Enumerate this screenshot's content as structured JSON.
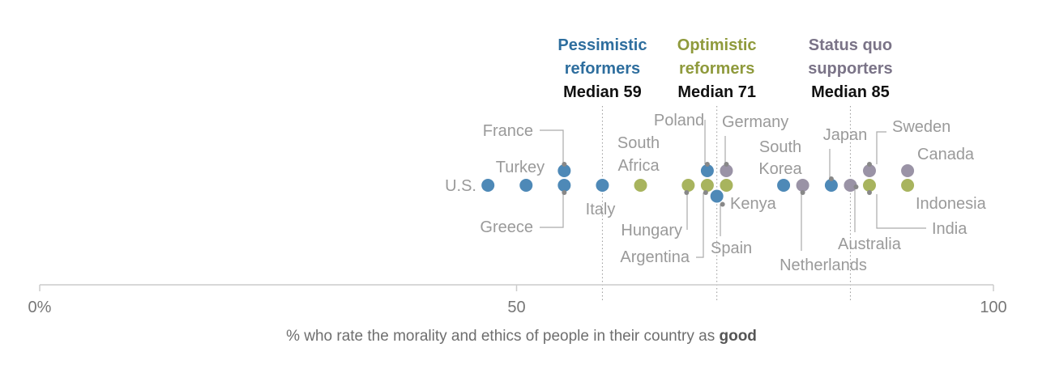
{
  "chart_data": {
    "type": "scatter",
    "xlabel_parts": [
      "% who rate the morality and ethics of people in their country as ",
      "good"
    ],
    "xlim": [
      0,
      100
    ],
    "ticks": [
      {
        "value": 0,
        "label": "0%"
      },
      {
        "value": 50,
        "label": "50"
      },
      {
        "value": 100,
        "label": "100"
      }
    ],
    "groups": [
      {
        "key": "pessimistic",
        "title_lines": [
          "Pessimistic",
          "reformers"
        ],
        "median_label": "Median 59",
        "median": 59,
        "color": "#2e6e9e"
      },
      {
        "key": "optimistic",
        "title_lines": [
          "Optimistic",
          "reformers"
        ],
        "median_label": "Median 71",
        "median": 71,
        "color": "#8f9a3c"
      },
      {
        "key": "statusquo",
        "title_lines": [
          "Status quo",
          "supporters"
        ],
        "median_label": "Median 85",
        "median": 85,
        "color": "#7a7387"
      }
    ],
    "colors": {
      "pessimistic": "#4e89b7",
      "optimistic": "#a8b45e",
      "statusquo": "#9a93a6",
      "axis": "#cccccc",
      "median_line": "#999999",
      "leader": "#aaaaaa",
      "connector_dot": "#888888"
    },
    "points": [
      {
        "country": "U.S.",
        "value": 47,
        "group": "pessimistic"
      },
      {
        "country": "Turkey",
        "value": 51,
        "group": "pessimistic"
      },
      {
        "country": "France",
        "value": 55,
        "group": "pessimistic"
      },
      {
        "country": "Greece",
        "value": 55,
        "group": "pessimistic"
      },
      {
        "country": "Italy",
        "value": 59,
        "group": "pessimistic"
      },
      {
        "country": "South Africa",
        "value": 63,
        "group": "optimistic"
      },
      {
        "country": "Hungary",
        "value": 68,
        "group": "optimistic"
      },
      {
        "country": "Poland",
        "value": 70,
        "group": "pessimistic"
      },
      {
        "country": "Argentina",
        "value": 70,
        "group": "optimistic"
      },
      {
        "country": "Spain",
        "value": 71,
        "group": "pessimistic"
      },
      {
        "country": "Germany",
        "value": 72,
        "group": "statusquo"
      },
      {
        "country": "Kenya",
        "value": 72,
        "group": "optimistic"
      },
      {
        "country": "South Korea",
        "value": 78,
        "group": "pessimistic"
      },
      {
        "country": "Netherlands",
        "value": 80,
        "group": "statusquo"
      },
      {
        "country": "Japan",
        "value": 83,
        "group": "pessimistic"
      },
      {
        "country": "Australia",
        "value": 85,
        "group": "statusquo"
      },
      {
        "country": "Sweden",
        "value": 87,
        "group": "statusquo"
      },
      {
        "country": "India",
        "value": 87,
        "group": "optimistic"
      },
      {
        "country": "Canada",
        "value": 91,
        "group": "statusquo"
      },
      {
        "country": "Indonesia",
        "value": 91,
        "group": "optimistic"
      }
    ]
  }
}
